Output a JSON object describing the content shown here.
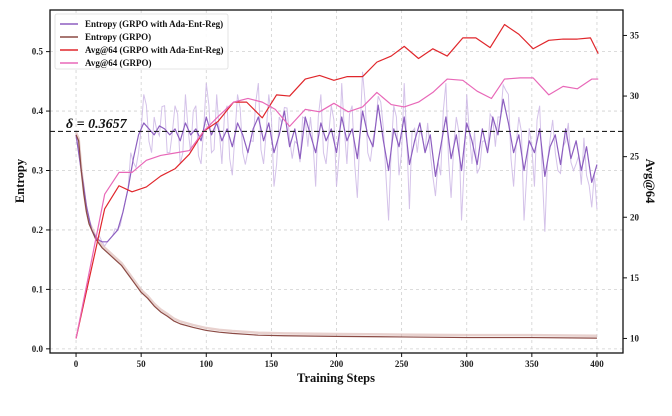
{
  "chart_data": {
    "type": "line",
    "xlabel": "Training Steps",
    "ylabel_left": "Entropy",
    "ylabel_right": "Avg@64",
    "xlim": [
      -20,
      420
    ],
    "ylim_left": [
      -0.007,
      0.57
    ],
    "ylim_right": [
      8.8,
      37.1
    ],
    "x_ticks": [
      "0",
      "50",
      "100",
      "150",
      "200",
      "250",
      "300",
      "350",
      "400"
    ],
    "y_ticks_left": [
      "0.0",
      "0.1",
      "0.2",
      "0.3",
      "0.4",
      "0.5"
    ],
    "y_ticks_right": [
      "10",
      "15",
      "20",
      "25",
      "30",
      "35"
    ],
    "grid": true,
    "legend_position": "top-left",
    "threshold": {
      "value": 0.3657,
      "label": "δ = 0.3657",
      "axis": "left"
    },
    "series": [
      {
        "name": "Entropy (GRPO with Ada-Ent-Reg)",
        "axis": "left",
        "color": "#8d5fc0",
        "points": [
          [
            0,
            0.36
          ],
          [
            4,
            0.3
          ],
          [
            8,
            0.24
          ],
          [
            12,
            0.2
          ],
          [
            16,
            0.185
          ],
          [
            20,
            0.18
          ],
          [
            24,
            0.18
          ],
          [
            28,
            0.19
          ],
          [
            32,
            0.2
          ],
          [
            36,
            0.23
          ],
          [
            40,
            0.27
          ],
          [
            44,
            0.32
          ],
          [
            48,
            0.36
          ],
          [
            52,
            0.38
          ],
          [
            56,
            0.37
          ],
          [
            60,
            0.36
          ],
          [
            64,
            0.375
          ],
          [
            68,
            0.37
          ],
          [
            72,
            0.36
          ],
          [
            76,
            0.37
          ],
          [
            80,
            0.35
          ],
          [
            84,
            0.38
          ],
          [
            88,
            0.36
          ],
          [
            92,
            0.37
          ],
          [
            96,
            0.35
          ],
          [
            100,
            0.39
          ],
          [
            104,
            0.36
          ],
          [
            108,
            0.38
          ],
          [
            112,
            0.35
          ],
          [
            116,
            0.37
          ],
          [
            120,
            0.34
          ],
          [
            124,
            0.38
          ],
          [
            128,
            0.36
          ],
          [
            132,
            0.33
          ],
          [
            136,
            0.37
          ],
          [
            140,
            0.39
          ],
          [
            144,
            0.35
          ],
          [
            148,
            0.38
          ],
          [
            152,
            0.33
          ],
          [
            156,
            0.36
          ],
          [
            160,
            0.4
          ],
          [
            164,
            0.34
          ],
          [
            168,
            0.37
          ],
          [
            172,
            0.32
          ],
          [
            176,
            0.39
          ],
          [
            180,
            0.36
          ],
          [
            184,
            0.33
          ],
          [
            188,
            0.38
          ],
          [
            192,
            0.35
          ],
          [
            196,
            0.37
          ],
          [
            200,
            0.33
          ],
          [
            204,
            0.39
          ],
          [
            208,
            0.35
          ],
          [
            212,
            0.37
          ],
          [
            216,
            0.32
          ],
          [
            220,
            0.4
          ],
          [
            224,
            0.36
          ],
          [
            228,
            0.34
          ],
          [
            232,
            0.41
          ],
          [
            236,
            0.35
          ],
          [
            240,
            0.3
          ],
          [
            244,
            0.37
          ],
          [
            248,
            0.34
          ],
          [
            252,
            0.39
          ],
          [
            256,
            0.31
          ],
          [
            260,
            0.35
          ],
          [
            264,
            0.38
          ],
          [
            268,
            0.33
          ],
          [
            272,
            0.36
          ],
          [
            276,
            0.29
          ],
          [
            280,
            0.34
          ],
          [
            284,
            0.39
          ],
          [
            288,
            0.32
          ],
          [
            292,
            0.36
          ],
          [
            296,
            0.3
          ],
          [
            300,
            0.38
          ],
          [
            304,
            0.35
          ],
          [
            308,
            0.31
          ],
          [
            312,
            0.37
          ],
          [
            316,
            0.33
          ],
          [
            320,
            0.39
          ],
          [
            324,
            0.36
          ],
          [
            328,
            0.42
          ],
          [
            332,
            0.38
          ],
          [
            336,
            0.33
          ],
          [
            340,
            0.36
          ],
          [
            344,
            0.3
          ],
          [
            348,
            0.35
          ],
          [
            352,
            0.33
          ],
          [
            356,
            0.37
          ],
          [
            360,
            0.29
          ],
          [
            364,
            0.34
          ],
          [
            368,
            0.36
          ],
          [
            372,
            0.31
          ],
          [
            376,
            0.37
          ],
          [
            380,
            0.32
          ],
          [
            384,
            0.35
          ],
          [
            388,
            0.3
          ],
          [
            392,
            0.34
          ],
          [
            396,
            0.28
          ],
          [
            400,
            0.31
          ]
        ]
      },
      {
        "name": "Entropy (GRPO)",
        "axis": "left",
        "color": "#8b4a44",
        "points": [
          [
            0,
            0.36
          ],
          [
            2,
            0.35
          ],
          [
            4,
            0.3
          ],
          [
            6,
            0.26
          ],
          [
            8,
            0.23
          ],
          [
            10,
            0.21
          ],
          [
            15,
            0.185
          ],
          [
            20,
            0.17
          ],
          [
            25,
            0.16
          ],
          [
            30,
            0.15
          ],
          [
            35,
            0.14
          ],
          [
            40,
            0.125
          ],
          [
            45,
            0.11
          ],
          [
            50,
            0.095
          ],
          [
            55,
            0.085
          ],
          [
            60,
            0.072
          ],
          [
            65,
            0.062
          ],
          [
            70,
            0.055
          ],
          [
            75,
            0.047
          ],
          [
            80,
            0.042
          ],
          [
            90,
            0.036
          ],
          [
            100,
            0.031
          ],
          [
            110,
            0.028
          ],
          [
            120,
            0.026
          ],
          [
            140,
            0.023
          ],
          [
            160,
            0.022
          ],
          [
            200,
            0.021
          ],
          [
            250,
            0.02
          ],
          [
            300,
            0.019
          ],
          [
            350,
            0.019
          ],
          [
            400,
            0.018
          ]
        ]
      },
      {
        "name": "Avg@64 (GRPO with Ada-Ent-Reg)",
        "axis": "right",
        "color": "#e0262b",
        "points": [
          [
            0,
            10.0
          ],
          [
            22,
            20.7
          ],
          [
            33,
            22.6
          ],
          [
            43,
            22.1
          ],
          [
            54,
            22.5
          ],
          [
            65,
            23.4
          ],
          [
            76,
            24.0
          ],
          [
            87,
            25.2
          ],
          [
            98,
            27.1
          ],
          [
            109,
            27.9
          ],
          [
            121,
            29.5
          ],
          [
            131,
            29.5
          ],
          [
            143,
            28.2
          ],
          [
            154,
            30.1
          ],
          [
            164,
            30.0
          ],
          [
            176,
            31.4
          ],
          [
            187,
            31.7
          ],
          [
            198,
            31.3
          ],
          [
            208,
            31.6
          ],
          [
            220,
            31.6
          ],
          [
            231,
            32.8
          ],
          [
            242,
            33.3
          ],
          [
            252,
            34.1
          ],
          [
            263,
            33.1
          ],
          [
            274,
            33.9
          ],
          [
            285,
            33.3
          ],
          [
            297,
            34.8
          ],
          [
            307,
            34.8
          ],
          [
            318,
            34.0
          ],
          [
            329,
            35.9
          ],
          [
            340,
            35.1
          ],
          [
            351,
            33.9
          ],
          [
            363,
            34.6
          ],
          [
            374,
            34.7
          ],
          [
            385,
            34.7
          ],
          [
            395,
            34.8
          ],
          [
            401,
            33.5
          ]
        ]
      },
      {
        "name": "Avg@64 (GRPO)",
        "axis": "right",
        "color": "#e868b8",
        "points": [
          [
            0,
            10.0
          ],
          [
            22,
            21.9
          ],
          [
            33,
            23.7
          ],
          [
            43,
            23.7
          ],
          [
            54,
            24.7
          ],
          [
            65,
            25.1
          ],
          [
            76,
            25.3
          ],
          [
            87,
            25.5
          ],
          [
            98,
            27.1
          ],
          [
            109,
            28.3
          ],
          [
            121,
            29.5
          ],
          [
            132,
            29.8
          ],
          [
            143,
            29.5
          ],
          [
            153,
            28.9
          ],
          [
            164,
            27.5
          ],
          [
            176,
            28.9
          ],
          [
            187,
            28.7
          ],
          [
            198,
            29.4
          ],
          [
            209,
            28.7
          ],
          [
            220,
            29.1
          ],
          [
            231,
            30.3
          ],
          [
            242,
            29.3
          ],
          [
            252,
            29.1
          ],
          [
            263,
            29.5
          ],
          [
            274,
            30.3
          ],
          [
            285,
            31.4
          ],
          [
            297,
            31.3
          ],
          [
            308,
            30.4
          ],
          [
            319,
            29.8
          ],
          [
            329,
            31.4
          ],
          [
            341,
            31.5
          ],
          [
            351,
            31.5
          ],
          [
            363,
            30.1
          ],
          [
            374,
            30.8
          ],
          [
            385,
            30.6
          ],
          [
            396,
            31.4
          ],
          [
            401,
            31.4
          ]
        ]
      }
    ]
  }
}
